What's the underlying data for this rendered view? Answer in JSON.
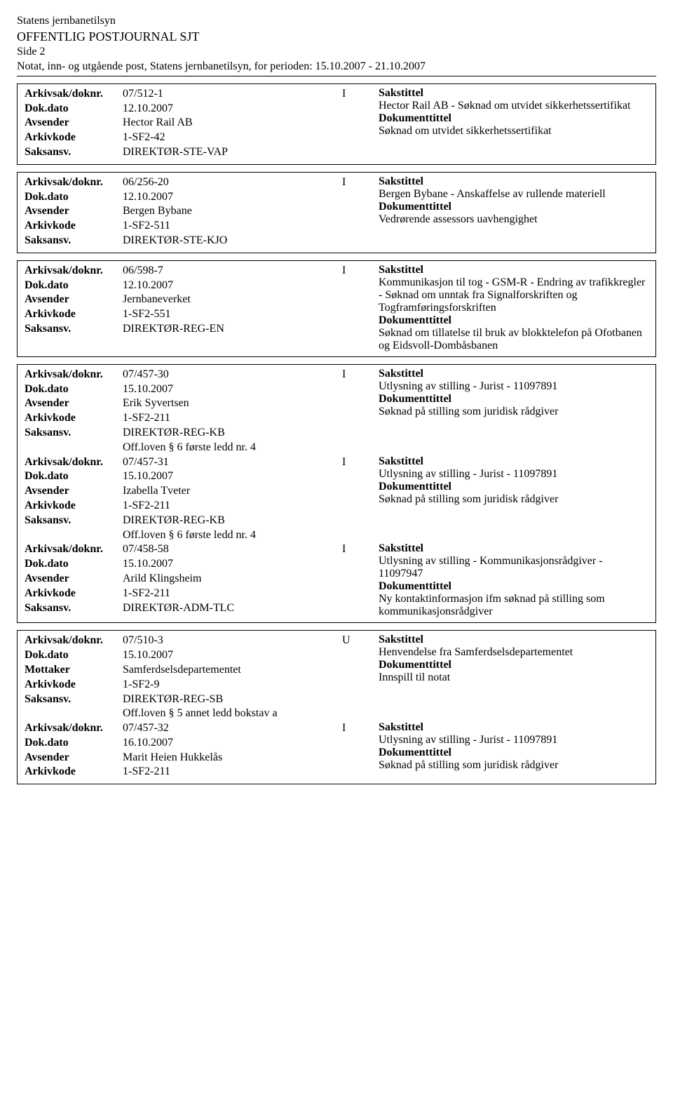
{
  "header": {
    "org": "Statens jernbanetilsyn",
    "journal": "OFFENTLIG POSTJOURNAL SJT",
    "page": "Side 2",
    "period": "Notat, inn- og utgående post, Statens jernbanetilsyn, for perioden: 15.10.2007 - 21.10.2007"
  },
  "labels": {
    "arkivsak": "Arkivsak/doknr.",
    "dokdato": "Dok.dato",
    "avsender": "Avsender",
    "mottaker": "Mottaker",
    "arkivkode": "Arkivkode",
    "saksansv": "Saksansv.",
    "sakstittel": "Sakstittel",
    "dokumenttittel": "Dokumenttittel"
  },
  "records": [
    {
      "arkivsak": "07/512-1",
      "type": "I",
      "dokdato": "12.10.2007",
      "party_label": "Avsender",
      "party": "Hector Rail AB",
      "arkivkode": "1-SF2-42",
      "saksansv": "DIREKTØR-STE-VAP",
      "off": "",
      "sakstittel": "Hector Rail AB - Søknad om utvidet sikkerhetssertifikat",
      "doktittel": "Søknad om utvidet sikkerhetssertifikat"
    },
    {
      "arkivsak": "06/256-20",
      "type": "I",
      "dokdato": "12.10.2007",
      "party_label": "Avsender",
      "party": "Bergen Bybane",
      "arkivkode": "1-SF2-511",
      "saksansv": "DIREKTØR-STE-KJO",
      "off": "",
      "sakstittel": "Bergen Bybane - Anskaffelse av rullende materiell",
      "doktittel": "Vedrørende assessors uavhengighet"
    },
    {
      "arkivsak": "06/598-7",
      "type": "I",
      "dokdato": "12.10.2007",
      "party_label": "Avsender",
      "party": "Jernbaneverket",
      "arkivkode": "1-SF2-551",
      "saksansv": "DIREKTØR-REG-EN",
      "off": "",
      "sakstittel": "Kommunikasjon til tog - GSM-R - Endring av trafikkregler - Søknad om unntak fra Signalforskriften og Togframføringsforskriften",
      "doktittel": "Søknad om tillatelse til bruk av blokktelefon på Ofotbanen og Eidsvoll-Dombåsbanen"
    },
    {
      "arkivsak": "07/457-30",
      "type": "I",
      "dokdato": "15.10.2007",
      "party_label": "Avsender",
      "party": "Erik Syvertsen",
      "arkivkode": "1-SF2-211",
      "saksansv": "DIREKTØR-REG-KB",
      "off": "Off.loven § 6 første ledd nr. 4",
      "sakstittel": "Utlysning av stilling - Jurist - 11097891",
      "doktittel": "Søknad på stilling som juridisk rådgiver"
    },
    {
      "arkivsak": "07/457-31",
      "type": "I",
      "dokdato": "15.10.2007",
      "party_label": "Avsender",
      "party": "Izabella Tveter",
      "arkivkode": "1-SF2-211",
      "saksansv": "DIREKTØR-REG-KB",
      "off": "Off.loven § 6 første ledd nr. 4",
      "sakstittel": "Utlysning av stilling - Jurist - 11097891",
      "doktittel": "Søknad på stilling som juridisk rådgiver"
    },
    {
      "arkivsak": "07/458-58",
      "type": "I",
      "dokdato": "15.10.2007",
      "party_label": "Avsender",
      "party": "Arild Klingsheim",
      "arkivkode": "1-SF2-211",
      "saksansv": "DIREKTØR-ADM-TLC",
      "off": "",
      "sakstittel": "Utlysning av stilling - Kommunikasjonsrådgiver - 11097947",
      "doktittel": "Ny kontaktinformasjon ifm søknad på stilling som kommunikasjonsrådgiver"
    },
    {
      "arkivsak": "07/510-3",
      "type": "U",
      "dokdato": "15.10.2007",
      "party_label": "Mottaker",
      "party": "Samferdselsdepartementet",
      "arkivkode": "1-SF2-9",
      "saksansv": "DIREKTØR-REG-SB",
      "off": "Off.loven § 5 annet ledd bokstav a",
      "sakstittel": "Henvendelse fra Samferdselsdepartementet",
      "doktittel": "Innspill til notat"
    },
    {
      "arkivsak": "07/457-32",
      "type": "I",
      "dokdato": "16.10.2007",
      "party_label": "Avsender",
      "party": "Marit Heien Hukkelås",
      "arkivkode": "1-SF2-211",
      "saksansv": "",
      "off": "",
      "sakstittel": "Utlysning av stilling - Jurist - 11097891",
      "doktittel": "Søknad på stilling som juridisk rådgiver"
    }
  ],
  "groups": [
    [
      0
    ],
    [
      1
    ],
    [
      2
    ],
    [
      3,
      4,
      5
    ],
    [
      6,
      7
    ]
  ]
}
